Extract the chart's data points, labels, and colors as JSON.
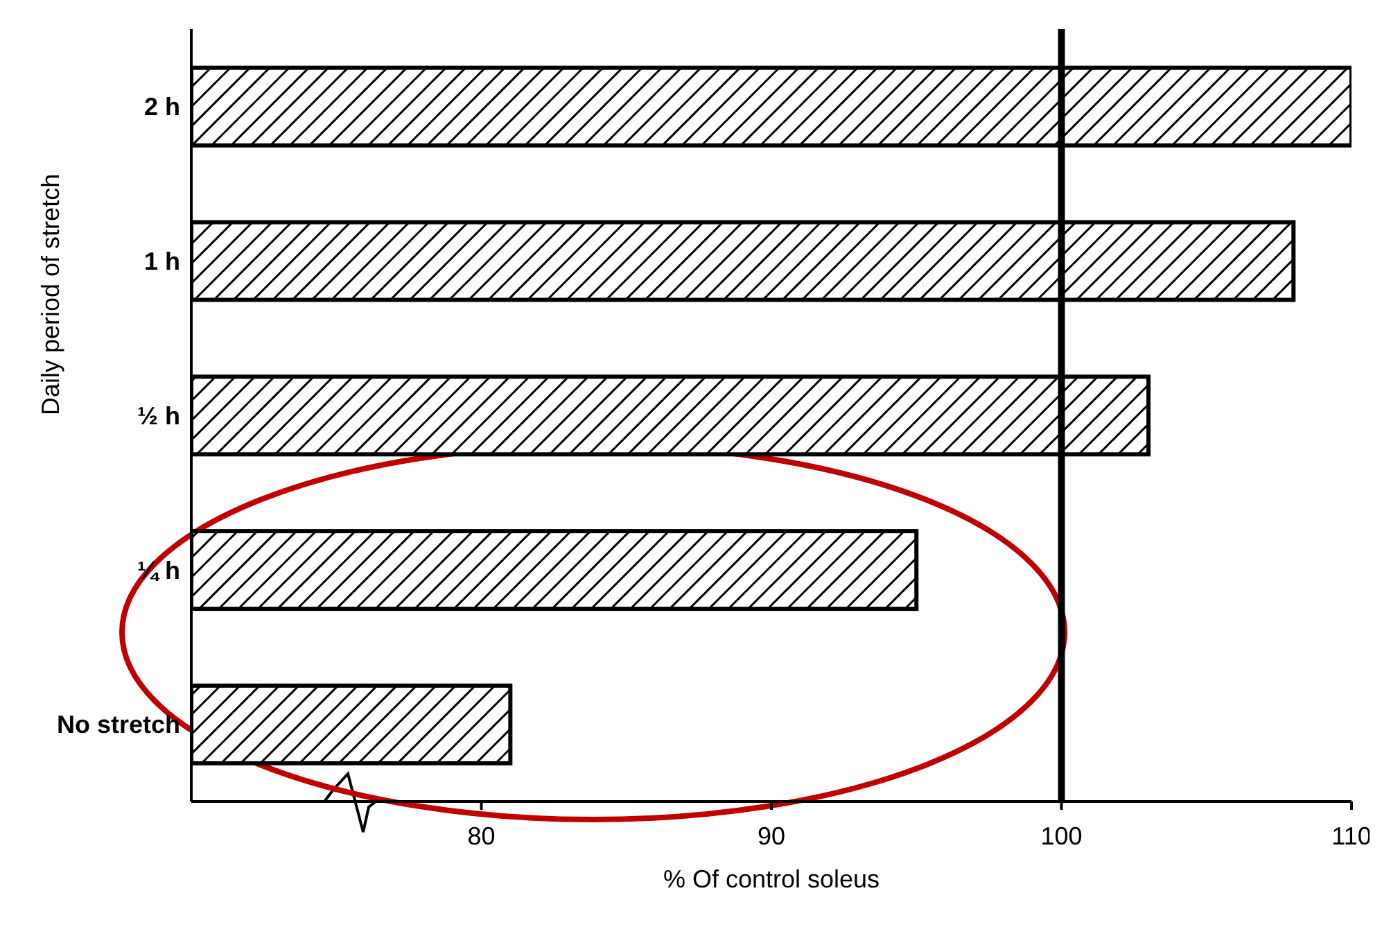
{
  "chart_data": {
    "type": "bar",
    "orientation": "horizontal",
    "categories": [
      "2 h",
      "1 h",
      "½ h",
      "¼ h",
      "No stretch"
    ],
    "values": [
      110,
      108,
      103,
      95,
      81
    ],
    "color": "#000000",
    "xlim": [
      70,
      110
    ],
    "xticks": [
      80,
      90,
      100,
      110
    ],
    "xlabel": "% Of control soleus",
    "ylabel": "Daily period of stretch",
    "ref_lines": [
      {
        "axis": "x",
        "value": 100,
        "color": "#000000"
      }
    ],
    "grid": false,
    "legend": false
  }
}
